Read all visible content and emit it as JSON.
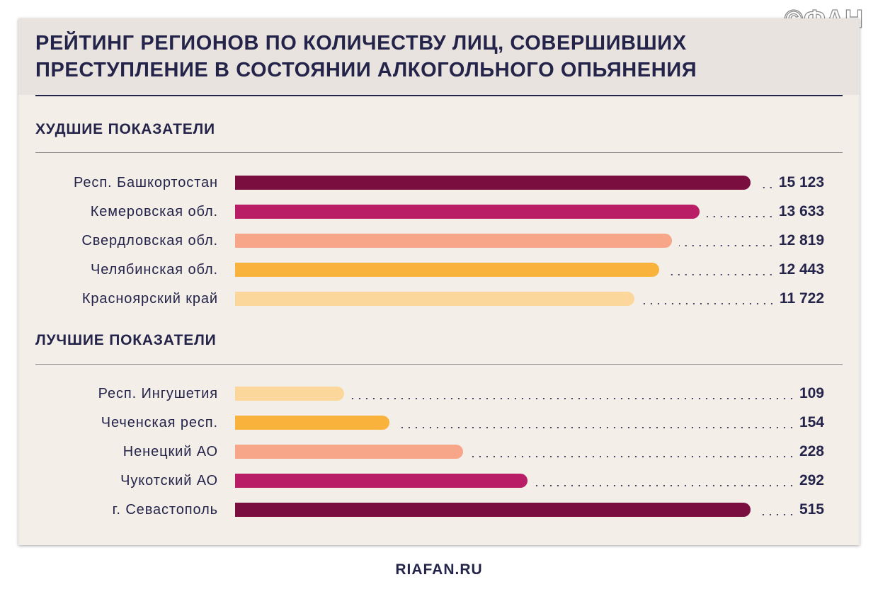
{
  "watermark": "©ФАН",
  "source": "RIAFAN.RU",
  "chart_data": {
    "type": "bar",
    "orientation": "horizontal",
    "title": "РЕЙТИНГ РЕГИОНОВ ПО КОЛИЧЕСТВУ ЛИЦ, СОВЕРШИВШИХ ПРЕСТУПЛЕНИЕ В СОСТОЯНИИ АЛКОГОЛЬНОГО ОПЬЯНЕНИЯ",
    "groups": [
      {
        "title": "ХУДШИЕ ПОКАЗАТЕЛИ",
        "categories": [
          "Респ. Башкортостан",
          "Кемеровская обл.",
          "Свердловская обл.",
          "Челябинская обл.",
          "Красноярский край"
        ],
        "values": [
          15123,
          13633,
          12819,
          12443,
          11722
        ],
        "value_labels": [
          "15 123",
          "13 633",
          "12 819",
          "12 443",
          "11 722"
        ],
        "colors": [
          "#7a0e3f",
          "#b81d66",
          "#f7a68a",
          "#f9b23c",
          "#fbd79b"
        ]
      },
      {
        "title": "ЛУЧШИЕ ПОКАЗАТЕЛИ",
        "categories": [
          "Респ. Ингушетия",
          "Чеченская респ.",
          "Ненецкий АО",
          "Чукотский АО",
          "г. Севастополь"
        ],
        "values": [
          109,
          154,
          228,
          292,
          515
        ],
        "value_labels": [
          "109",
          "154",
          "228",
          "292",
          "515"
        ],
        "colors": [
          "#fbd79b",
          "#f9b23c",
          "#f7a68a",
          "#b81d66",
          "#7a0e3f"
        ]
      }
    ],
    "grid": false,
    "legend": "none"
  }
}
